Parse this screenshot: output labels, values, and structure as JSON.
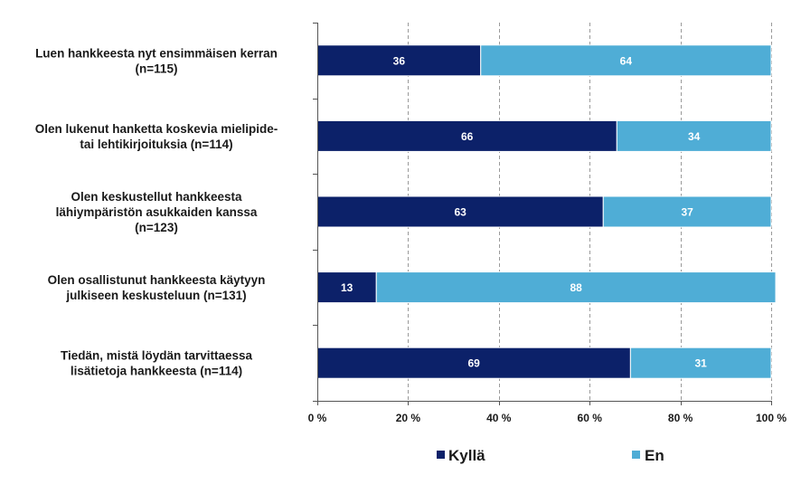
{
  "chart_data": {
    "type": "bar",
    "orientation": "horizontal",
    "stacked": true,
    "categories": [
      [
        "Luen hankkeesta nyt ensimmäisen kerran",
        "(n=115)"
      ],
      [
        "Olen lukenut hanketta koskevia mielipide-",
        "tai lehtikirjoituksia (n=114)"
      ],
      [
        "Olen keskustellut hankkeesta",
        "lähiympäristön asukkaiden kanssa",
        "(n=123)"
      ],
      [
        "Olen osallistunut hankkeesta käytyyn",
        "julkiseen keskusteluun (n=131)"
      ],
      [
        "Tiedän, mistä löydän tarvittaessa",
        "lisätietoja hankkeesta (n=114)"
      ]
    ],
    "series": [
      {
        "name": "Kyllä",
        "color": "#0c2169",
        "values": [
          36,
          66,
          63,
          13,
          69
        ]
      },
      {
        "name": "En",
        "color": "#4fadd6",
        "values": [
          64,
          34,
          37,
          88,
          31
        ]
      }
    ],
    "xlim": [
      0,
      100
    ],
    "xticks": [
      0,
      20,
      40,
      60,
      80,
      100
    ],
    "xtick_labels": [
      "0 %",
      "20 %",
      "40 %",
      "60 %",
      "80 %",
      "100 %"
    ],
    "grid": "vertical dashed",
    "legend_position": "bottom"
  }
}
